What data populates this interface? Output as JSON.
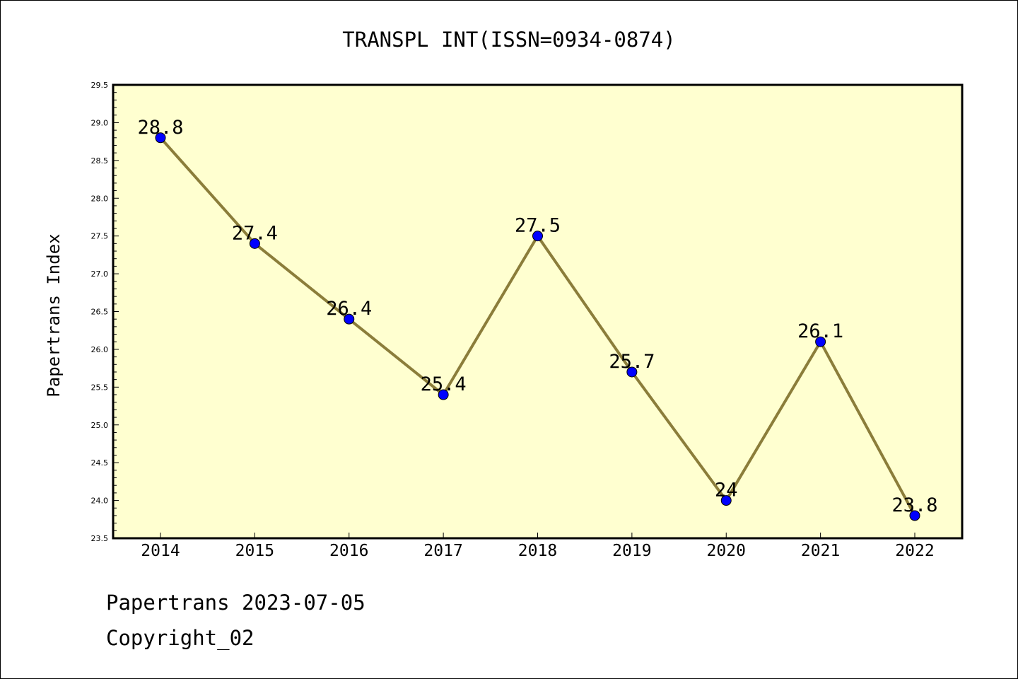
{
  "footer": {
    "line1": "Papertrans 2023-07-05",
    "line2": "Copyright_02"
  },
  "chart_data": {
    "type": "line",
    "title": "TRANSPL INT(ISSN=0934-0874)",
    "xlabel": "",
    "ylabel": "Papertrans Index",
    "categories": [
      "2014",
      "2015",
      "2016",
      "2017",
      "2018",
      "2019",
      "2020",
      "2021",
      "2022"
    ],
    "values": [
      28.8,
      27.4,
      26.4,
      25.4,
      27.5,
      25.7,
      24.0,
      26.1,
      23.8
    ],
    "data_labels": [
      "28.8",
      "27.4",
      "26.4",
      "25.4",
      "27.5",
      "25.7",
      "24",
      "26.1",
      "23.8"
    ],
    "ylim": [
      23.5,
      29.5
    ],
    "yticks": [
      "23.5",
      "24.0",
      "24.5",
      "25.0",
      "25.5",
      "26.0",
      "26.5",
      "27.0",
      "27.5",
      "28.0",
      "28.5",
      "29.0",
      "29.5"
    ],
    "grid": false,
    "colors": {
      "plot_background": "#ffffd0",
      "line": "#8b7d3a",
      "marker": "#0000ff"
    }
  }
}
